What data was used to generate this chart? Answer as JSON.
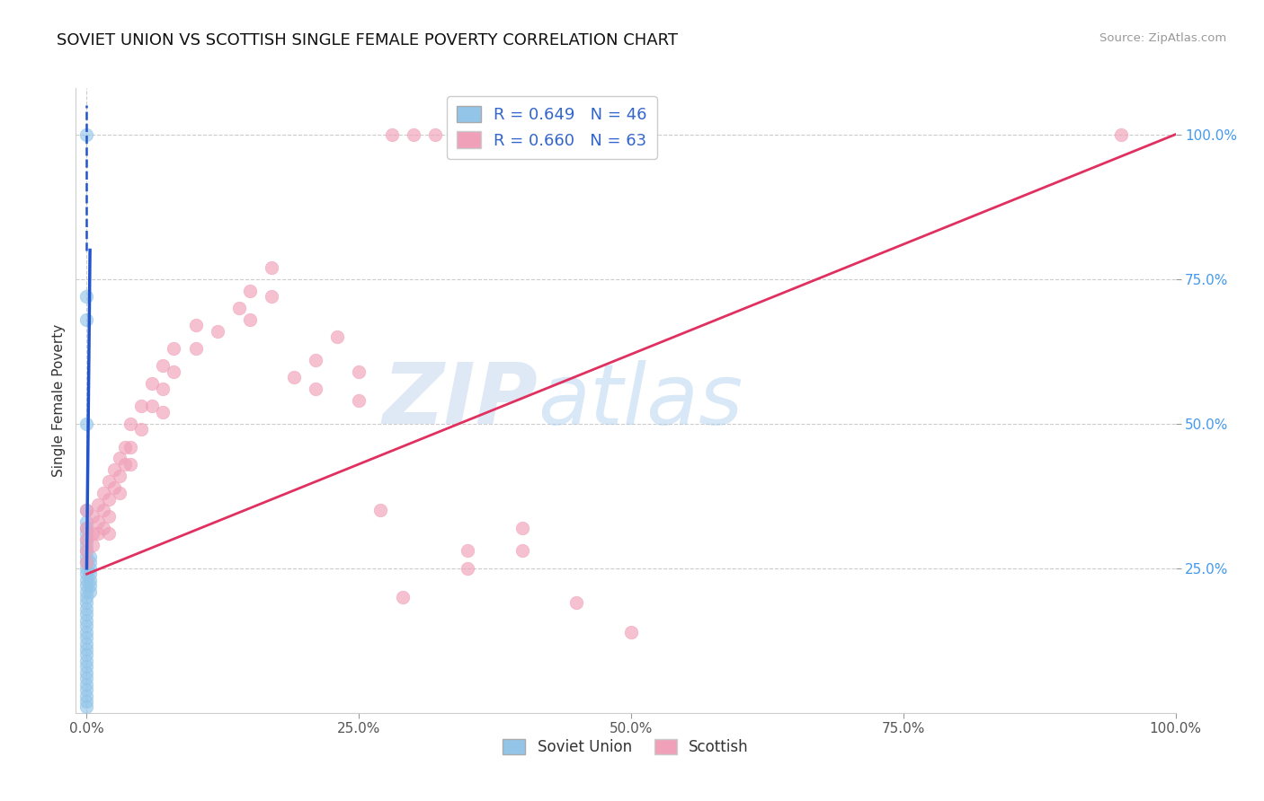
{
  "title": "SOVIET UNION VS SCOTTISH SINGLE FEMALE POVERTY CORRELATION CHART",
  "source": "Source: ZipAtlas.com",
  "ylabel": "Single Female Poverty",
  "blue_label": "Soviet Union",
  "pink_label": "Scottish",
  "blue_R": 0.649,
  "blue_N": 46,
  "pink_R": 0.66,
  "pink_N": 63,
  "blue_color": "#92C5E8",
  "pink_color": "#F0A0B8",
  "blue_line_color": "#2255CC",
  "pink_line_color": "#E03060",
  "blue_scatter": [
    [
      0.0,
      1.0
    ],
    [
      0.0,
      0.72
    ],
    [
      0.0,
      0.68
    ],
    [
      0.0,
      0.5
    ],
    [
      0.0,
      0.35
    ],
    [
      0.0,
      0.33
    ],
    [
      0.0,
      0.32
    ],
    [
      0.0,
      0.31
    ],
    [
      0.0,
      0.3
    ],
    [
      0.0,
      0.29
    ],
    [
      0.0,
      0.28
    ],
    [
      0.0,
      0.27
    ],
    [
      0.0,
      0.26
    ],
    [
      0.0,
      0.25
    ],
    [
      0.0,
      0.24
    ],
    [
      0.0,
      0.23
    ],
    [
      0.0,
      0.22
    ],
    [
      0.0,
      0.21
    ],
    [
      0.0,
      0.2
    ],
    [
      0.0,
      0.19
    ],
    [
      0.0,
      0.18
    ],
    [
      0.0,
      0.17
    ],
    [
      0.0,
      0.16
    ],
    [
      0.0,
      0.15
    ],
    [
      0.0,
      0.14
    ],
    [
      0.0,
      0.13
    ],
    [
      0.0,
      0.12
    ],
    [
      0.0,
      0.11
    ],
    [
      0.0,
      0.1
    ],
    [
      0.0,
      0.09
    ],
    [
      0.0,
      0.08
    ],
    [
      0.0,
      0.07
    ],
    [
      0.0,
      0.06
    ],
    [
      0.0,
      0.05
    ],
    [
      0.0,
      0.04
    ],
    [
      0.0,
      0.03
    ],
    [
      0.0,
      0.02
    ],
    [
      0.0,
      0.01
    ],
    [
      0.003,
      0.27
    ],
    [
      0.003,
      0.26
    ],
    [
      0.003,
      0.25
    ],
    [
      0.003,
      0.24
    ],
    [
      0.003,
      0.23
    ],
    [
      0.003,
      0.22
    ],
    [
      0.003,
      0.21
    ]
  ],
  "pink_scatter": [
    [
      0.0,
      0.35
    ],
    [
      0.0,
      0.32
    ],
    [
      0.0,
      0.3
    ],
    [
      0.0,
      0.28
    ],
    [
      0.0,
      0.26
    ],
    [
      0.005,
      0.34
    ],
    [
      0.005,
      0.31
    ],
    [
      0.005,
      0.29
    ],
    [
      0.01,
      0.36
    ],
    [
      0.01,
      0.33
    ],
    [
      0.01,
      0.31
    ],
    [
      0.015,
      0.38
    ],
    [
      0.015,
      0.35
    ],
    [
      0.015,
      0.32
    ],
    [
      0.02,
      0.4
    ],
    [
      0.02,
      0.37
    ],
    [
      0.02,
      0.34
    ],
    [
      0.02,
      0.31
    ],
    [
      0.025,
      0.42
    ],
    [
      0.025,
      0.39
    ],
    [
      0.03,
      0.44
    ],
    [
      0.03,
      0.41
    ],
    [
      0.03,
      0.38
    ],
    [
      0.035,
      0.46
    ],
    [
      0.035,
      0.43
    ],
    [
      0.04,
      0.5
    ],
    [
      0.04,
      0.46
    ],
    [
      0.04,
      0.43
    ],
    [
      0.05,
      0.53
    ],
    [
      0.05,
      0.49
    ],
    [
      0.06,
      0.57
    ],
    [
      0.06,
      0.53
    ],
    [
      0.07,
      0.6
    ],
    [
      0.07,
      0.56
    ],
    [
      0.07,
      0.52
    ],
    [
      0.08,
      0.63
    ],
    [
      0.08,
      0.59
    ],
    [
      0.1,
      0.67
    ],
    [
      0.1,
      0.63
    ],
    [
      0.12,
      0.66
    ],
    [
      0.14,
      0.7
    ],
    [
      0.15,
      0.73
    ],
    [
      0.15,
      0.68
    ],
    [
      0.17,
      0.77
    ],
    [
      0.17,
      0.72
    ],
    [
      0.19,
      0.58
    ],
    [
      0.21,
      0.61
    ],
    [
      0.21,
      0.56
    ],
    [
      0.23,
      0.65
    ],
    [
      0.25,
      0.59
    ],
    [
      0.25,
      0.54
    ],
    [
      0.27,
      0.35
    ],
    [
      0.29,
      0.2
    ],
    [
      0.35,
      0.28
    ],
    [
      0.35,
      0.25
    ],
    [
      0.4,
      0.32
    ],
    [
      0.4,
      0.28
    ],
    [
      0.45,
      0.19
    ],
    [
      0.5,
      0.14
    ],
    [
      0.95,
      1.0
    ]
  ],
  "top_pink": [
    [
      0.28,
      1.0
    ],
    [
      0.3,
      1.0
    ],
    [
      0.32,
      1.0
    ],
    [
      0.34,
      1.0
    ],
    [
      0.42,
      1.0
    ],
    [
      0.44,
      1.0
    ]
  ],
  "pink_line": [
    0.0,
    0.24,
    1.0,
    1.0
  ],
  "blue_line_solid": [
    0.0,
    0.25,
    0.003,
    0.8
  ],
  "blue_line_dashed": [
    0.0,
    0.8,
    0.0,
    1.05
  ],
  "xlim": [
    -0.01,
    1.0
  ],
  "ylim": [
    0.0,
    1.08
  ],
  "xticks": [
    0.0,
    0.25,
    0.5,
    0.75,
    1.0
  ],
  "yticks": [
    0.25,
    0.5,
    0.75,
    1.0
  ],
  "xtick_labels": [
    "0.0%",
    "25.0%",
    "50.0%",
    "75.0%",
    "100.0%"
  ],
  "ytick_labels": [
    "25.0%",
    "50.0%",
    "75.0%",
    "100.0%"
  ],
  "tick_color": "#4499EE",
  "watermark_zip": "ZIP",
  "watermark_atlas": "atlas"
}
